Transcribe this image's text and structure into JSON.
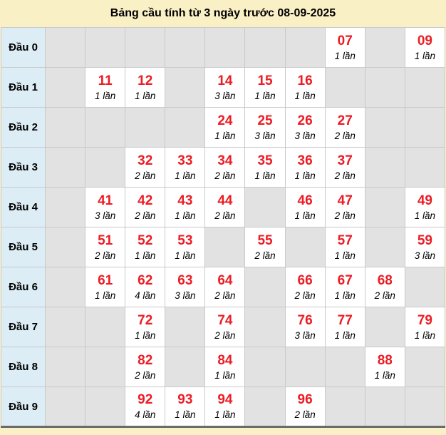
{
  "title": "Bảng cầu tính từ 3 ngày trước 08-09-2025",
  "colors": {
    "page_bg": "#FAF0C6",
    "label_bg": "#DCEDF5",
    "empty_bg": "#E2E2E2",
    "filled_bg": "#FFFFFF",
    "number_red": "#ED1C24",
    "cell_border": "#C9C9C9"
  },
  "table": {
    "columns_per_row": 10,
    "rows": [
      {
        "label": "Đầu 0",
        "cells": [
          null,
          null,
          null,
          null,
          null,
          null,
          null,
          {
            "number": "07",
            "count": "1 lần"
          },
          null,
          {
            "number": "09",
            "count": "1 lần"
          }
        ]
      },
      {
        "label": "Đầu 1",
        "cells": [
          null,
          {
            "number": "11",
            "count": "1 lần"
          },
          {
            "number": "12",
            "count": "1 lần"
          },
          null,
          {
            "number": "14",
            "count": "3 lần"
          },
          {
            "number": "15",
            "count": "1 lần"
          },
          {
            "number": "16",
            "count": "1 lần"
          },
          null,
          null,
          null
        ]
      },
      {
        "label": "Đầu 2",
        "cells": [
          null,
          null,
          null,
          null,
          {
            "number": "24",
            "count": "1 lần"
          },
          {
            "number": "25",
            "count": "3 lần"
          },
          {
            "number": "26",
            "count": "3 lần"
          },
          {
            "number": "27",
            "count": "2 lần"
          },
          null,
          null
        ]
      },
      {
        "label": "Đầu 3",
        "cells": [
          null,
          null,
          {
            "number": "32",
            "count": "2 lần"
          },
          {
            "number": "33",
            "count": "1 lần"
          },
          {
            "number": "34",
            "count": "2 lần"
          },
          {
            "number": "35",
            "count": "1 lần"
          },
          {
            "number": "36",
            "count": "1 lần"
          },
          {
            "number": "37",
            "count": "2 lần"
          },
          null,
          null
        ]
      },
      {
        "label": "Đầu 4",
        "cells": [
          null,
          {
            "number": "41",
            "count": "3 lần"
          },
          {
            "number": "42",
            "count": "2 lần"
          },
          {
            "number": "43",
            "count": "1 lần"
          },
          {
            "number": "44",
            "count": "2 lần"
          },
          null,
          {
            "number": "46",
            "count": "1 lần"
          },
          {
            "number": "47",
            "count": "2 lần"
          },
          null,
          {
            "number": "49",
            "count": "1 lần"
          }
        ]
      },
      {
        "label": "Đầu 5",
        "cells": [
          null,
          {
            "number": "51",
            "count": "2 lần"
          },
          {
            "number": "52",
            "count": "1 lần"
          },
          {
            "number": "53",
            "count": "1 lần"
          },
          null,
          {
            "number": "55",
            "count": "2 lần"
          },
          null,
          {
            "number": "57",
            "count": "1 lần"
          },
          null,
          {
            "number": "59",
            "count": "3 lần"
          }
        ]
      },
      {
        "label": "Đầu 6",
        "cells": [
          null,
          {
            "number": "61",
            "count": "1 lần"
          },
          {
            "number": "62",
            "count": "4 lần"
          },
          {
            "number": "63",
            "count": "3 lần"
          },
          {
            "number": "64",
            "count": "2 lần"
          },
          null,
          {
            "number": "66",
            "count": "2 lần"
          },
          {
            "number": "67",
            "count": "1 lần"
          },
          {
            "number": "68",
            "count": "2 lần"
          },
          null
        ]
      },
      {
        "label": "Đầu 7",
        "cells": [
          null,
          null,
          {
            "number": "72",
            "count": "1 lần"
          },
          null,
          {
            "number": "74",
            "count": "2 lần"
          },
          null,
          {
            "number": "76",
            "count": "3 lần"
          },
          {
            "number": "77",
            "count": "1 lần"
          },
          null,
          {
            "number": "79",
            "count": "1 lần"
          }
        ]
      },
      {
        "label": "Đầu 8",
        "cells": [
          null,
          null,
          {
            "number": "82",
            "count": "2 lần"
          },
          null,
          {
            "number": "84",
            "count": "1 lần"
          },
          null,
          null,
          null,
          {
            "number": "88",
            "count": "1 lần"
          },
          null
        ]
      },
      {
        "label": "Đầu 9",
        "cells": [
          null,
          null,
          {
            "number": "92",
            "count": "4 lần"
          },
          {
            "number": "93",
            "count": "1 lần"
          },
          {
            "number": "94",
            "count": "1 lần"
          },
          null,
          {
            "number": "96",
            "count": "2 lần"
          },
          null,
          null,
          null
        ]
      }
    ]
  }
}
